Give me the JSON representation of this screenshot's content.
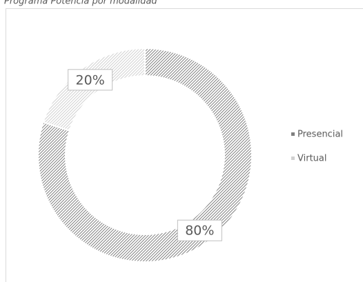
{
  "chart_data": {
    "type": "donut",
    "title": "Programa Potencia por modalidad",
    "categories": [
      "Presencial",
      "Virtual"
    ],
    "values": [
      80,
      20
    ],
    "value_labels": [
      "80%",
      "20%"
    ],
    "colors": [
      "#7f7f7f",
      "#d0d0d0"
    ],
    "legend": "right"
  }
}
